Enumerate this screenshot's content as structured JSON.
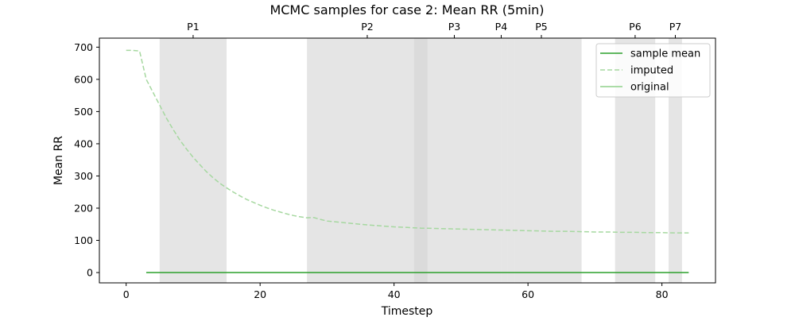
{
  "chart_data": {
    "type": "line",
    "title": "MCMC samples for case 2: Mean RR (5min)",
    "xlabel": "Timestep",
    "ylabel": "Mean RR",
    "xlim": [
      -4,
      88
    ],
    "ylim": [
      -32,
      728
    ],
    "x_ticks": [
      0,
      20,
      40,
      60,
      80
    ],
    "y_ticks": [
      0,
      100,
      200,
      300,
      400,
      500,
      600,
      700
    ],
    "grid": false,
    "legend_position": "top-right",
    "colors": {
      "sample_mean": "#2ca02c",
      "imputed": "#a6d8a0",
      "original": "#8fd18a",
      "band": "#d3d3d3"
    },
    "top_axis": {
      "labels": [
        "P1",
        "P2",
        "P3",
        "P4",
        "P5",
        "P6",
        "P7"
      ],
      "positions": [
        10,
        36,
        49,
        56,
        62,
        76,
        82
      ]
    },
    "shaded_regions": [
      [
        5,
        15
      ],
      [
        27,
        45
      ],
      [
        43,
        45
      ],
      [
        45,
        55
      ],
      [
        55,
        56
      ],
      [
        56,
        57
      ],
      [
        57,
        58
      ],
      [
        58,
        68
      ],
      [
        73,
        79
      ],
      [
        81,
        83
      ]
    ],
    "series": [
      {
        "name": "sample mean",
        "style": "solid",
        "x": [
          3,
          84
        ],
        "values": [
          0,
          0
        ]
      },
      {
        "name": "imputed",
        "style": "dashed",
        "x": [
          0,
          1,
          2,
          3,
          4,
          5,
          6,
          7,
          8,
          9,
          10,
          11,
          12,
          13,
          14,
          15,
          16,
          17,
          18,
          19,
          20,
          21,
          22,
          23,
          24,
          25,
          26,
          27,
          28,
          29,
          30,
          32,
          34,
          36,
          38,
          40,
          42,
          44,
          46,
          48,
          50,
          52,
          54,
          56,
          58,
          60,
          62,
          64,
          66,
          68,
          70,
          72,
          74,
          76,
          78,
          80,
          82,
          84
        ],
        "values": [
          690,
          690,
          688,
          600,
          560,
          520,
          480,
          445,
          412,
          384,
          358,
          335,
          313,
          294,
          277,
          263,
          250,
          238,
          227,
          218,
          209,
          201,
          194,
          188,
          182,
          177,
          173,
          170,
          171,
          165,
          160,
          156,
          152,
          148,
          145,
          142,
          140,
          138,
          137,
          136,
          135,
          134,
          133,
          132,
          131,
          130,
          129,
          128,
          128,
          127,
          126,
          126,
          125,
          125,
          124,
          124,
          123,
          123
        ]
      },
      {
        "name": "original",
        "style": "solid",
        "x": [],
        "values": []
      }
    ]
  }
}
